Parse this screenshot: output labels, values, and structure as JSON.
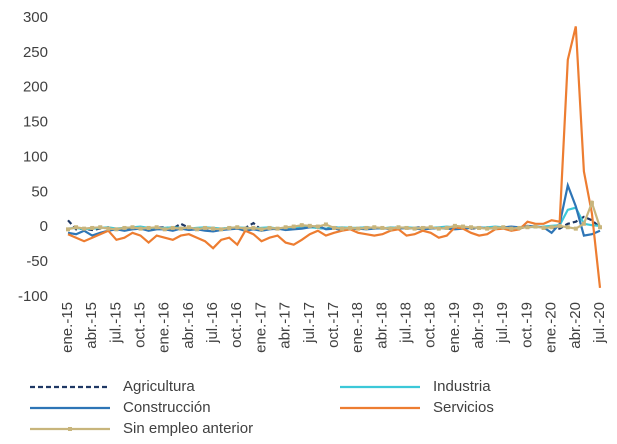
{
  "chart_data": {
    "type": "line",
    "categories": [
      "ene.-15",
      null,
      null,
      "abr.-15",
      null,
      null,
      "jul.-15",
      null,
      null,
      "oct.-15",
      null,
      null,
      "ene.-16",
      null,
      null,
      "abr.-16",
      null,
      null,
      "jul.-16",
      null,
      null,
      "oct.-16",
      null,
      null,
      "ene.-17",
      null,
      null,
      "abr.-17",
      null,
      null,
      "jul.-17",
      null,
      null,
      "oct.-17",
      null,
      null,
      "ene.-18",
      null,
      null,
      "abr.-18",
      null,
      null,
      "jul.-18",
      null,
      null,
      "oct.-18",
      null,
      null,
      "ene.-19",
      null,
      null,
      "abr.-19",
      null,
      null,
      "jul.-19",
      null,
      null,
      "oct.-19",
      null,
      null,
      "ene.-20",
      null,
      null,
      "abr.-20",
      null,
      null,
      "jul.-20"
    ],
    "ylim": [
      -100,
      300
    ],
    "yticks": [
      -100,
      -50,
      0,
      50,
      100,
      150,
      200,
      250,
      300
    ],
    "grid": false,
    "series": [
      {
        "name": "Agricultura",
        "color": "#1f3864",
        "dash": true,
        "values": [
          10,
          -3,
          -2,
          -4,
          -2,
          0,
          -3,
          -1,
          -2,
          0,
          -3,
          -1,
          0,
          -2,
          5,
          -1,
          -3,
          -2,
          -1,
          -3,
          0,
          -2,
          -1,
          6,
          -4,
          -2,
          -3,
          -1,
          -2,
          0,
          1,
          -1,
          -2,
          0,
          -1,
          -2,
          -1,
          0,
          -1,
          -2,
          -1,
          0,
          -2,
          -1,
          0,
          -1,
          -2,
          -1,
          0,
          -1,
          -2,
          -1,
          0,
          -1,
          -1,
          0,
          -1,
          0,
          1,
          0,
          0,
          -2,
          5,
          8,
          15,
          10,
          0
        ]
      },
      {
        "name": "Industria",
        "color": "#3cc8d8",
        "values": [
          -2,
          -1,
          -3,
          -2,
          -1,
          0,
          -2,
          -1,
          0,
          1,
          -1,
          -2,
          -1,
          0,
          -1,
          -2,
          -1,
          0,
          -1,
          -2,
          -1,
          0,
          -1,
          -2,
          -1,
          0,
          -2,
          -1,
          0,
          1,
          0,
          -1,
          -2,
          -1,
          0,
          -1,
          -1,
          0,
          -1,
          -2,
          0,
          -1,
          0,
          -1,
          -2,
          -1,
          0,
          1,
          0,
          -1,
          0,
          -1,
          0,
          1,
          0,
          -1,
          0,
          1,
          0,
          1,
          2,
          3,
          25,
          28,
          5,
          3,
          2
        ]
      },
      {
        "name": "Construcción",
        "color": "#2e75b6",
        "values": [
          -8,
          -10,
          -5,
          -12,
          -8,
          -5,
          -3,
          -5,
          -3,
          -2,
          -5,
          -3,
          -3,
          -5,
          -2,
          -4,
          -3,
          -5,
          -6,
          -4,
          -3,
          -2,
          -5,
          -3,
          -5,
          -3,
          -2,
          -4,
          -3,
          -2,
          0,
          2,
          -3,
          -2,
          -4,
          -3,
          -2,
          -3,
          -2,
          -1,
          -3,
          -2,
          -1,
          -2,
          -3,
          -2,
          -1,
          -2,
          -3,
          -2,
          -1,
          0,
          -2,
          -1,
          0,
          1,
          0,
          2,
          1,
          0,
          -8,
          5,
          60,
          30,
          -12,
          -10,
          -5
        ]
      },
      {
        "name": "Servicios",
        "color": "#ed7d31",
        "values": [
          -10,
          -15,
          -20,
          -15,
          -10,
          -5,
          -18,
          -15,
          -8,
          -12,
          -22,
          -12,
          -15,
          -18,
          -12,
          -10,
          -15,
          -20,
          -30,
          -18,
          -15,
          -25,
          -5,
          -10,
          -20,
          -15,
          -12,
          -22,
          -25,
          -18,
          -10,
          -5,
          -12,
          -8,
          -5,
          -3,
          -8,
          -10,
          -12,
          -10,
          -5,
          -3,
          -12,
          -10,
          -5,
          -8,
          -15,
          -12,
          0,
          -2,
          -8,
          -12,
          -10,
          -3,
          -2,
          -5,
          -3,
          8,
          5,
          5,
          10,
          8,
          240,
          288,
          80,
          20,
          -87
        ]
      },
      {
        "name": "Sin empleo anterior",
        "color": "#c8b57c",
        "marker": true,
        "values": [
          -3,
          0,
          -2,
          -1,
          0,
          -2,
          -3,
          -1,
          0,
          -2,
          -1,
          0,
          -3,
          -1,
          -2,
          0,
          -3,
          -1,
          -2,
          -3,
          -1,
          0,
          -2,
          -1,
          -3,
          -1,
          -2,
          0,
          1,
          3,
          2,
          1,
          4,
          -1,
          -2,
          -1,
          -2,
          -1,
          0,
          -1,
          -2,
          0,
          -1,
          -2,
          -1,
          0,
          -2,
          -1,
          2,
          1,
          0,
          -1,
          -2,
          -1,
          0,
          -2,
          -1,
          0,
          1,
          -1,
          0,
          2,
          0,
          -2,
          5,
          35,
          0
        ]
      }
    ]
  }
}
